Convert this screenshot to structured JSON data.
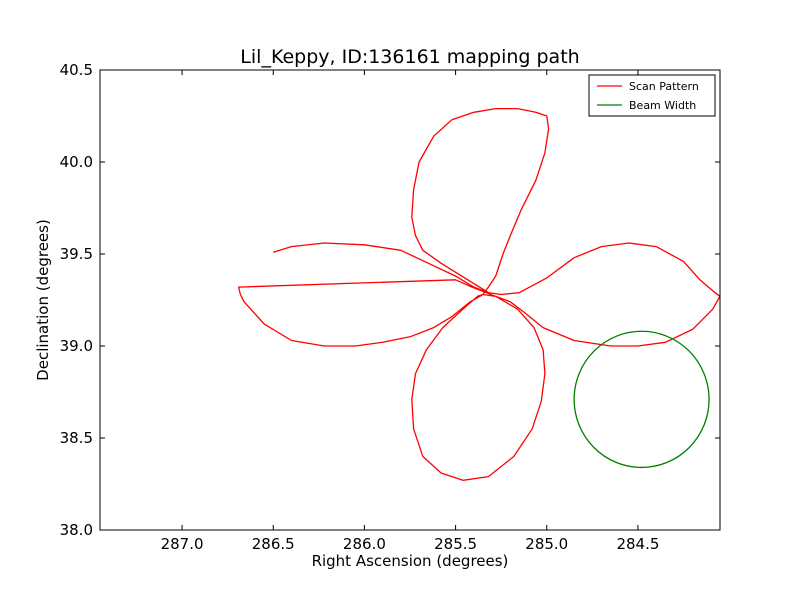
{
  "chart_data": {
    "type": "line",
    "title": "Lil_Keppy, ID:136161 mapping path",
    "xlabel": "Right Ascension (degrees)",
    "ylabel": "Declination (degrees)",
    "xlim": [
      287.45,
      284.05
    ],
    "ylim": [
      38.0,
      40.5
    ],
    "x_inverted": true,
    "xticks": [
      "287.0",
      "286.5",
      "286.0",
      "285.5",
      "285.0",
      "284.5"
    ],
    "xtick_values": [
      287.0,
      286.5,
      286.0,
      285.5,
      285.0,
      284.5
    ],
    "yticks": [
      "38.0",
      "38.5",
      "39.0",
      "39.5",
      "40.0",
      "40.5"
    ],
    "ytick_values": [
      38.0,
      38.5,
      39.0,
      39.5,
      40.0,
      40.5
    ],
    "grid": false,
    "legend_position": "top-right",
    "series": [
      {
        "name": "Scan Pattern",
        "color": "#ff0000",
        "x": [
          286.5,
          286.4,
          286.22,
          286.0,
          285.8,
          285.65,
          285.5,
          285.4,
          285.32,
          285.25,
          285.15,
          285.0,
          284.85,
          284.7,
          284.55,
          284.4,
          284.25,
          284.16,
          284.09,
          284.05,
          284.09,
          284.2,
          284.35,
          284.5,
          284.65,
          284.85,
          285.02,
          285.12,
          285.2,
          285.28,
          285.35,
          285.42,
          285.52,
          285.62,
          285.75,
          285.9,
          286.05,
          286.22,
          286.4,
          286.55,
          286.66,
          286.68,
          286.69,
          285.5,
          285.41,
          285.28,
          285.16,
          285.07,
          285.02,
          285.01,
          285.03,
          285.08,
          285.18,
          285.32,
          285.46,
          285.58,
          285.68,
          285.73,
          285.74,
          285.72,
          285.66,
          285.57,
          285.46,
          285.38,
          285.35,
          285.32,
          285.28,
          285.26,
          285.24,
          285.2,
          285.14,
          285.06,
          285.01,
          284.99,
          285.0,
          285.06,
          285.16,
          285.28,
          285.4,
          285.52,
          285.62,
          285.7,
          285.73,
          285.74,
          285.72,
          285.68,
          285.58,
          285.45,
          285.32
        ],
        "y": [
          39.51,
          39.54,
          39.56,
          39.55,
          39.52,
          39.45,
          39.38,
          39.32,
          39.29,
          39.28,
          39.29,
          39.37,
          39.48,
          39.54,
          39.56,
          39.54,
          39.46,
          39.36,
          39.3,
          39.27,
          39.2,
          39.09,
          39.02,
          39.0,
          39.0,
          39.03,
          39.1,
          39.18,
          39.24,
          39.27,
          39.28,
          39.24,
          39.16,
          39.1,
          39.05,
          39.02,
          39.0,
          39.0,
          39.03,
          39.12,
          39.24,
          39.28,
          39.32,
          39.36,
          39.32,
          39.27,
          39.2,
          39.1,
          38.98,
          38.85,
          38.7,
          38.55,
          38.4,
          38.29,
          38.27,
          38.31,
          38.4,
          38.55,
          38.71,
          38.85,
          38.98,
          39.1,
          39.2,
          39.27,
          39.28,
          39.32,
          39.38,
          39.44,
          39.5,
          39.6,
          39.74,
          39.9,
          40.05,
          40.18,
          40.25,
          40.27,
          40.29,
          40.29,
          40.27,
          40.23,
          40.14,
          40.0,
          39.85,
          39.7,
          39.6,
          39.52,
          39.45,
          39.37,
          39.29
        ]
      },
      {
        "name": "Beam Width",
        "color": "#008000",
        "shape": "circle",
        "center": [
          284.48,
          38.71
        ],
        "radius_ra": 0.37,
        "radius_dec": 0.37
      }
    ]
  }
}
